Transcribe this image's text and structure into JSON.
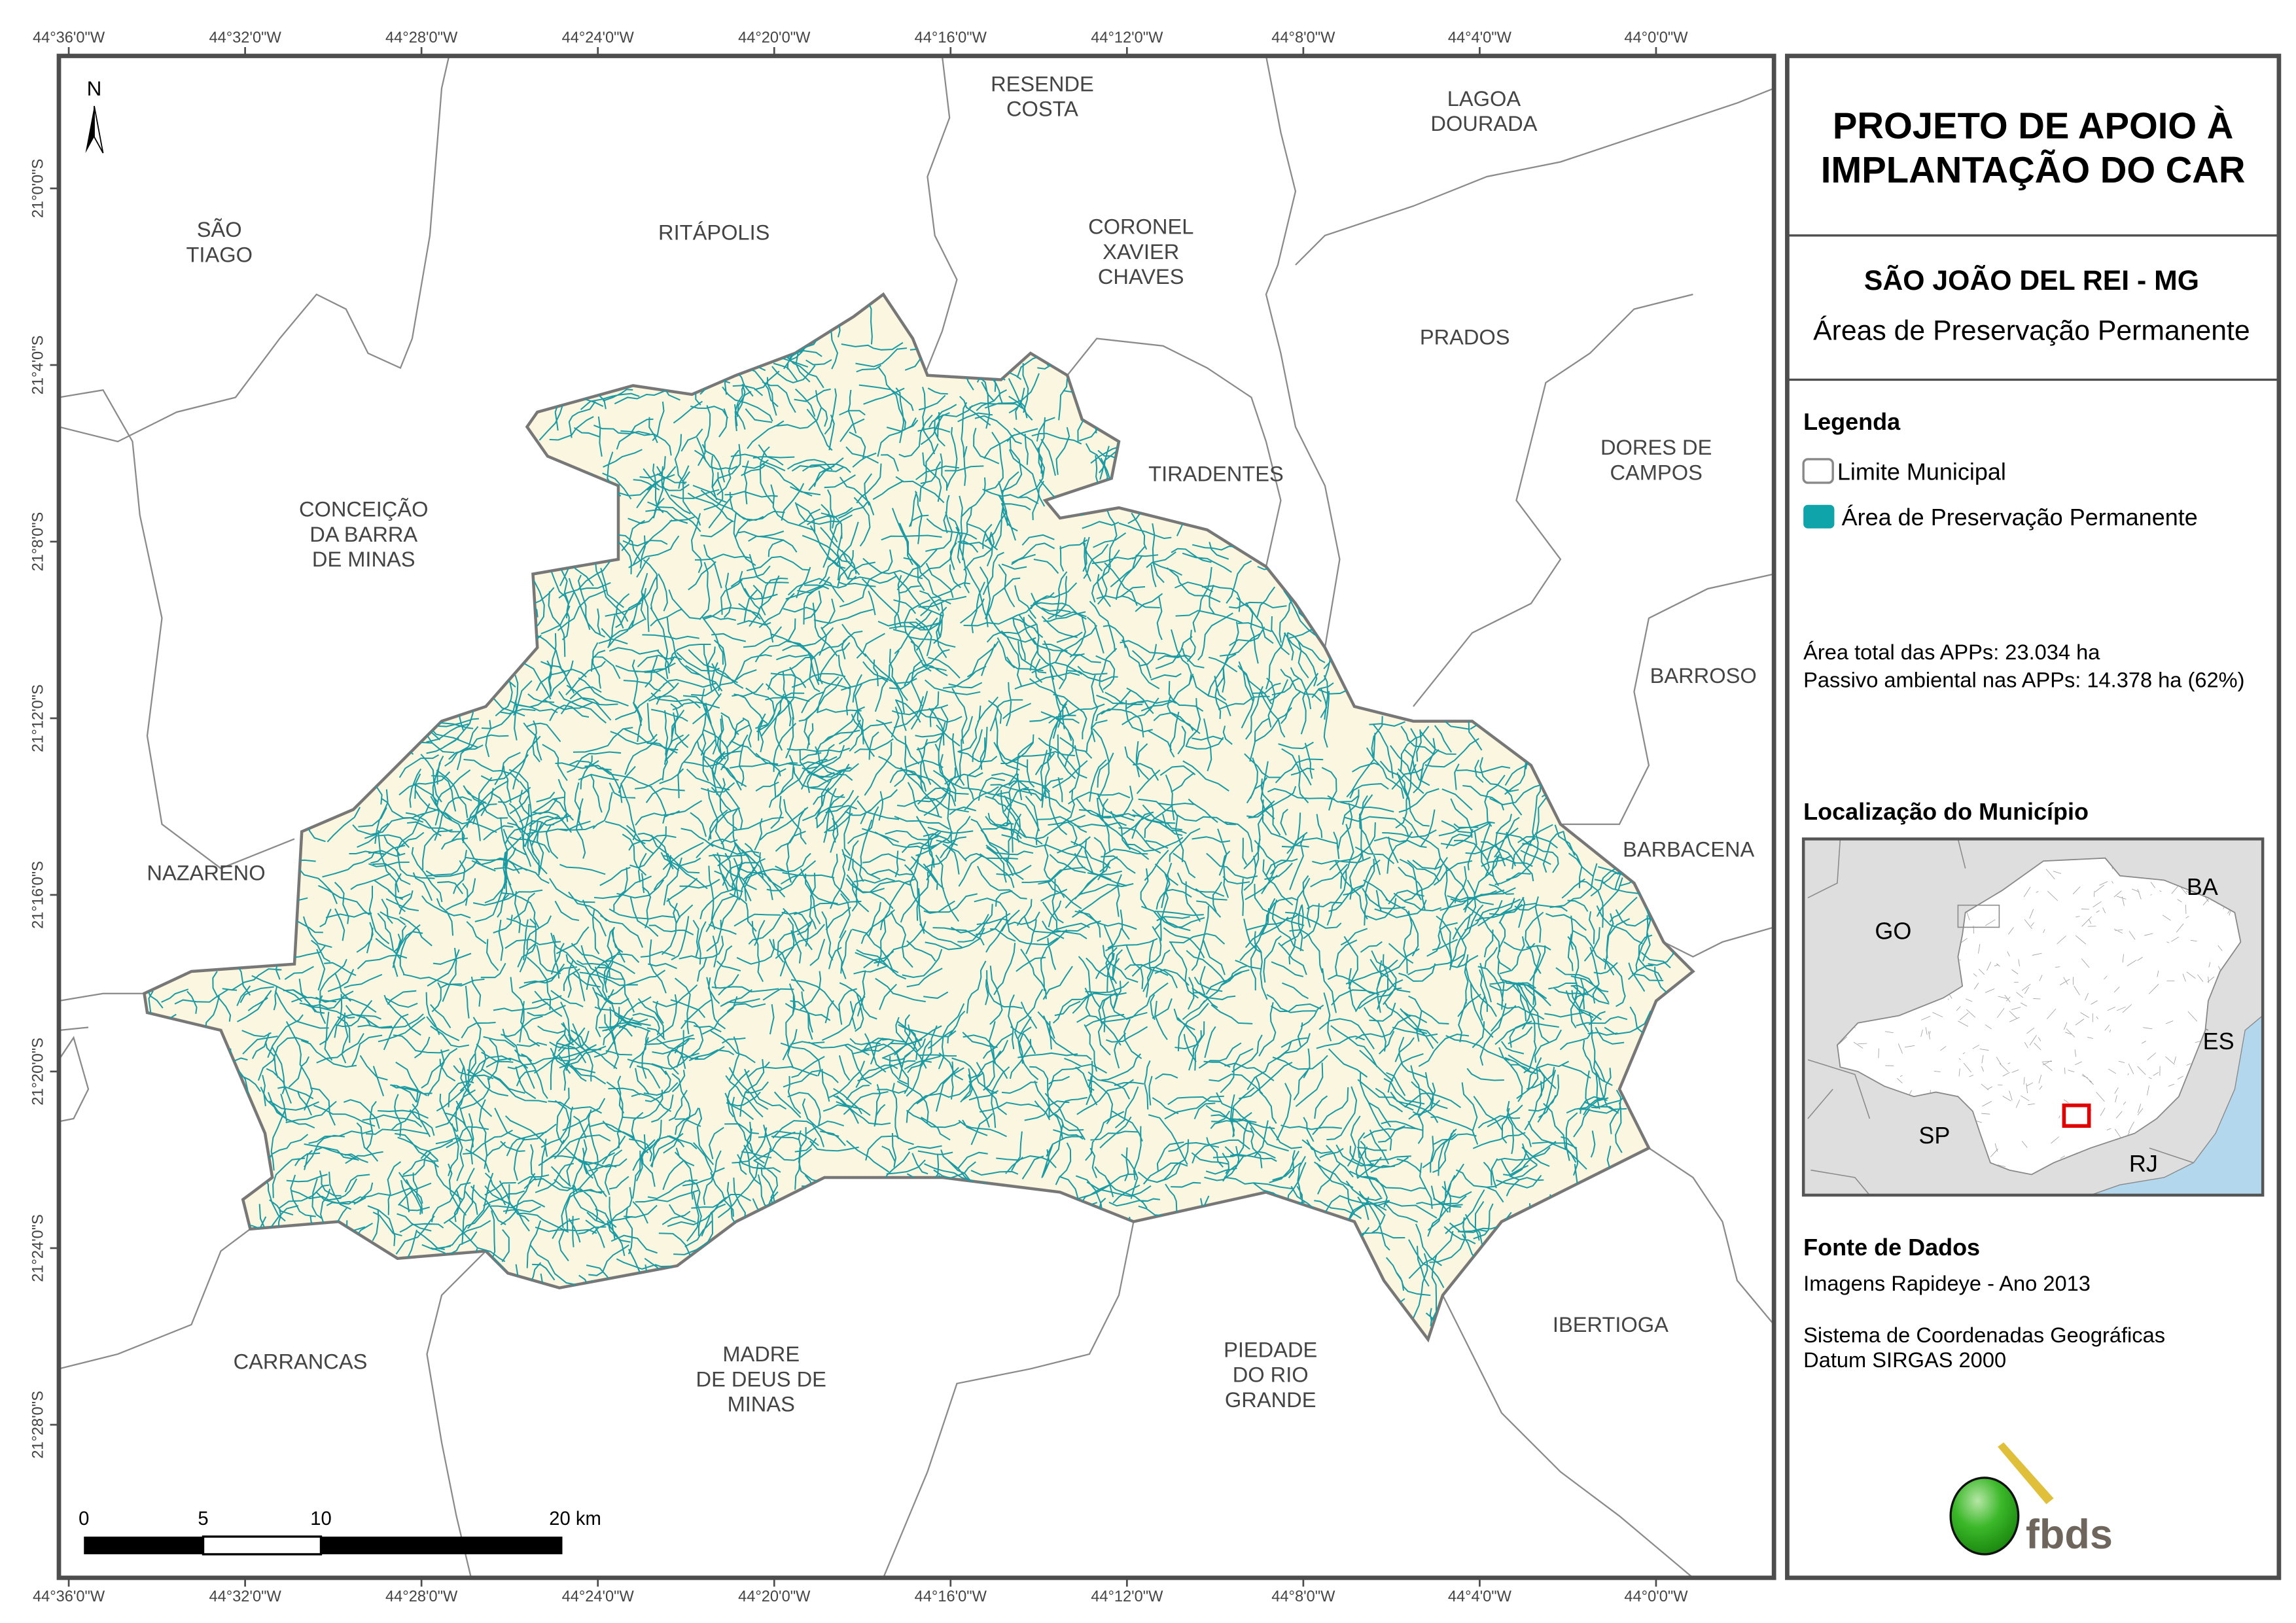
{
  "title": {
    "line1": "PROJETO DE APOIO À",
    "line2": "IMPLANTAÇÃO DO CAR"
  },
  "subtitle": {
    "municipality": "SÃO JOÃO DEL REI - MG",
    "theme": "Áreas de Preservação Permanente"
  },
  "legend": {
    "heading": "Legenda",
    "items": [
      {
        "label": "Limite Municipal",
        "color": "#ffffff",
        "border": "#888888"
      },
      {
        "label": "Área de Preservação Permanente",
        "color": "#0fa3aa"
      }
    ]
  },
  "stats": {
    "total": "Área total das APPs: 23.034 ha",
    "passivo": "Passivo ambiental nas APPs: 14.378 ha (62%)"
  },
  "location": {
    "heading": "Localização do Município",
    "states": [
      "GO",
      "BA",
      "ES",
      "SP",
      "RJ"
    ],
    "highlight_color": "#e00000",
    "sea_color": "#b3d8ee"
  },
  "source": {
    "heading": "Fonte de Dados",
    "imagery": "Imagens Rapideye - Ano 2013",
    "crs_line1": "Sistema de Coordenadas Geográficas",
    "crs_line2": "Datum SIRGAS 2000"
  },
  "logo": {
    "text": "fbds"
  },
  "map": {
    "north": "N",
    "longitudes": [
      "44°36'0\"W",
      "44°32'0\"W",
      "44°28'0\"W",
      "44°24'0\"W",
      "44°20'0\"W",
      "44°16'0\"W",
      "44°12'0\"W",
      "44°8'0\"W",
      "44°4'0\"W",
      "44°0'0\"W"
    ],
    "latitudes": [
      "21°0'0\"S",
      "21°4'0\"S",
      "21°8'0\"S",
      "21°12'0\"S",
      "21°16'0\"S",
      "21°20'0\"S",
      "21°24'0\"S",
      "21°28'0\"S"
    ],
    "scale_labels": [
      "0",
      "5",
      "10",
      "20 km"
    ],
    "fill_color": "#fbf6e0",
    "stream_color": "#1a9ba3",
    "places": [
      [
        "SÃO",
        "TIAGO"
      ],
      [
        "RITÁPOLIS"
      ],
      [
        "RESENDE",
        "COSTA"
      ],
      [
        "CORONEL",
        "XAVIER",
        "CHAVES"
      ],
      [
        "LAGOA",
        "DOURADA"
      ],
      [
        "PRADOS"
      ],
      [
        "DORES DE",
        "CAMPOS"
      ],
      [
        "TIRADENTES"
      ],
      [
        "CONCEIÇÃO",
        "DA BARRA",
        "DE MINAS"
      ],
      [
        "BARROSO"
      ],
      [
        "BARBACENA"
      ],
      [
        "NAZARENO"
      ],
      [
        "IBERTIOGA"
      ],
      [
        "PIEDADE",
        "DO RIO",
        "GRANDE"
      ],
      [
        "MADRE",
        "DE DEUS DE",
        "MINAS"
      ],
      [
        "CARRANCAS"
      ]
    ]
  }
}
